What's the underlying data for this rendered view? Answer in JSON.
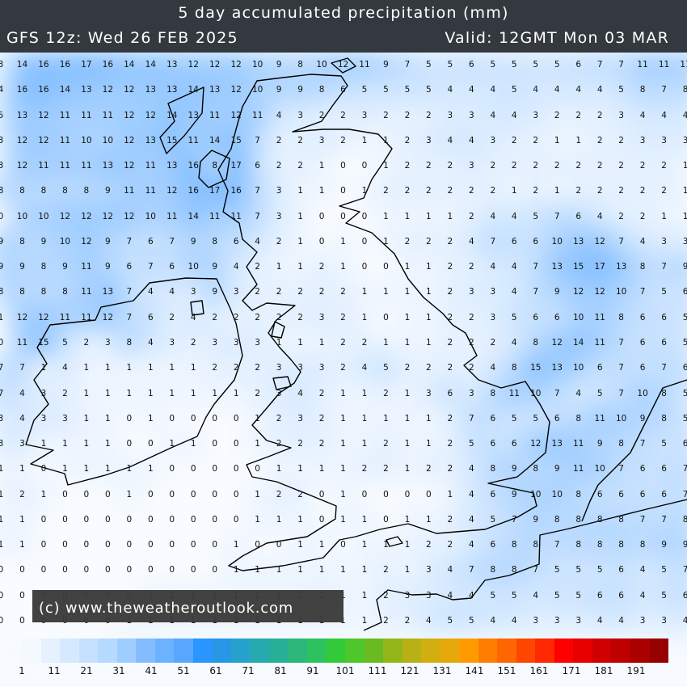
{
  "header": {
    "title": "5 day accumulated precipitation (mm)",
    "run": "GFS 12z: Wed 26 FEB 2025",
    "valid": "Valid: 12GMT Mon 03 MAR"
  },
  "watermark": "(c) www.theweatheroutlook.com",
  "units": "mm",
  "grid_values": [
    [
      3,
      14,
      16,
      16,
      17,
      16,
      14,
      14,
      13,
      12,
      12,
      12,
      10,
      9,
      8,
      10,
      12,
      11,
      9,
      7,
      5,
      5,
      6,
      5,
      5,
      5,
      5,
      6,
      7,
      7,
      11,
      11,
      11
    ],
    [
      4,
      16,
      16,
      14,
      13,
      12,
      12,
      13,
      13,
      14,
      13,
      12,
      10,
      9,
      9,
      8,
      6,
      5,
      5,
      5,
      5,
      4,
      4,
      4,
      5,
      4,
      4,
      4,
      4,
      5,
      8,
      7,
      8
    ],
    [
      5,
      13,
      12,
      11,
      11,
      11,
      12,
      12,
      14,
      13,
      11,
      12,
      11,
      4,
      3,
      2,
      2,
      3,
      2,
      2,
      2,
      3,
      3,
      4,
      4,
      3,
      2,
      2,
      2,
      3,
      4,
      4,
      4
    ],
    [
      3,
      12,
      12,
      11,
      10,
      10,
      12,
      13,
      15,
      11,
      14,
      15,
      7,
      2,
      2,
      3,
      2,
      1,
      1,
      2,
      3,
      4,
      4,
      3,
      2,
      2,
      1,
      1,
      2,
      2,
      3,
      3,
      3
    ],
    [
      3,
      12,
      11,
      11,
      11,
      13,
      12,
      11,
      13,
      16,
      8,
      17,
      6,
      2,
      2,
      1,
      0,
      0,
      1,
      2,
      2,
      2,
      3,
      2,
      2,
      2,
      2,
      2,
      2,
      2,
      2,
      2,
      1
    ],
    [
      8,
      8,
      8,
      8,
      8,
      9,
      11,
      11,
      12,
      16,
      17,
      16,
      7,
      3,
      1,
      1,
      0,
      1,
      2,
      2,
      2,
      2,
      2,
      2,
      1,
      2,
      1,
      2,
      2,
      2,
      2,
      2,
      1
    ],
    [
      0,
      10,
      10,
      12,
      12,
      12,
      12,
      10,
      11,
      14,
      11,
      11,
      7,
      3,
      1,
      0,
      0,
      0,
      1,
      1,
      1,
      1,
      2,
      4,
      4,
      5,
      7,
      6,
      4,
      2,
      2,
      1,
      1
    ],
    [
      9,
      8,
      9,
      10,
      12,
      9,
      7,
      6,
      7,
      9,
      8,
      6,
      4,
      2,
      1,
      0,
      1,
      0,
      1,
      2,
      2,
      2,
      4,
      7,
      6,
      6,
      10,
      13,
      12,
      7,
      4,
      3,
      3
    ],
    [
      9,
      9,
      8,
      9,
      11,
      9,
      6,
      7,
      6,
      10,
      9,
      4,
      2,
      1,
      1,
      2,
      1,
      0,
      0,
      1,
      1,
      2,
      2,
      4,
      4,
      7,
      13,
      15,
      17,
      13,
      8,
      7,
      9
    ],
    [
      8,
      8,
      8,
      8,
      11,
      13,
      7,
      4,
      4,
      3,
      9,
      3,
      2,
      2,
      2,
      2,
      2,
      1,
      1,
      1,
      1,
      2,
      3,
      3,
      4,
      7,
      9,
      12,
      12,
      10,
      7,
      5,
      6
    ],
    [
      1,
      12,
      12,
      11,
      11,
      12,
      7,
      6,
      2,
      4,
      2,
      2,
      2,
      2,
      2,
      3,
      2,
      1,
      0,
      1,
      1,
      2,
      2,
      3,
      5,
      6,
      6,
      10,
      11,
      8,
      6,
      6,
      5
    ],
    [
      0,
      11,
      15,
      5,
      2,
      3,
      8,
      4,
      3,
      2,
      3,
      3,
      3,
      1,
      1,
      1,
      2,
      2,
      1,
      1,
      1,
      2,
      2,
      2,
      4,
      8,
      12,
      14,
      11,
      7,
      6,
      6,
      5
    ],
    [
      7,
      7,
      1,
      4,
      1,
      1,
      1,
      1,
      1,
      1,
      2,
      2,
      2,
      3,
      3,
      3,
      2,
      4,
      5,
      2,
      2,
      2,
      2,
      4,
      8,
      15,
      13,
      10,
      6,
      7,
      6,
      7,
      6
    ],
    [
      7,
      4,
      3,
      2,
      1,
      1,
      1,
      1,
      1,
      1,
      1,
      1,
      2,
      3,
      4,
      2,
      1,
      1,
      2,
      1,
      3,
      6,
      3,
      8,
      11,
      10,
      7,
      4,
      5,
      7,
      10,
      8,
      5
    ],
    [
      3,
      4,
      3,
      3,
      1,
      1,
      0,
      1,
      0,
      0,
      0,
      0,
      1,
      2,
      3,
      2,
      1,
      1,
      1,
      1,
      1,
      2,
      7,
      6,
      5,
      5,
      6,
      8,
      11,
      10,
      9,
      8,
      5
    ],
    [
      3,
      3,
      1,
      1,
      1,
      1,
      0,
      0,
      1,
      1,
      0,
      0,
      1,
      2,
      2,
      2,
      1,
      1,
      2,
      1,
      1,
      2,
      5,
      6,
      6,
      12,
      13,
      11,
      9,
      8,
      7,
      5,
      6
    ],
    [
      1,
      1,
      0,
      1,
      1,
      1,
      1,
      1,
      0,
      0,
      0,
      0,
      0,
      1,
      1,
      1,
      1,
      2,
      2,
      1,
      2,
      2,
      4,
      8,
      9,
      8,
      9,
      11,
      10,
      7,
      6,
      6,
      7
    ],
    [
      1,
      2,
      1,
      0,
      0,
      0,
      1,
      0,
      0,
      0,
      0,
      0,
      1,
      2,
      2,
      0,
      1,
      0,
      0,
      0,
      0,
      1,
      4,
      6,
      9,
      10,
      10,
      8,
      6,
      6,
      6,
      6,
      7
    ],
    [
      1,
      1,
      0,
      0,
      0,
      0,
      0,
      0,
      0,
      0,
      0,
      0,
      1,
      1,
      1,
      0,
      1,
      1,
      0,
      1,
      1,
      2,
      4,
      5,
      7,
      9,
      8,
      8,
      8,
      8,
      7,
      7,
      8
    ],
    [
      1,
      1,
      0,
      0,
      0,
      0,
      0,
      0,
      0,
      0,
      0,
      1,
      0,
      0,
      1,
      1,
      0,
      1,
      1,
      1,
      2,
      2,
      4,
      6,
      8,
      8,
      7,
      8,
      8,
      8,
      8,
      9,
      9
    ],
    [
      0,
      0,
      0,
      0,
      0,
      0,
      0,
      0,
      0,
      0,
      0,
      1,
      1,
      1,
      1,
      1,
      1,
      1,
      2,
      1,
      3,
      4,
      7,
      8,
      8,
      7,
      5,
      5,
      5,
      6,
      4,
      5,
      7
    ],
    [
      0,
      0,
      0,
      0,
      0,
      0,
      0,
      1,
      1,
      1,
      1,
      1,
      1,
      1,
      1,
      2,
      1,
      1,
      2,
      3,
      3,
      4,
      4,
      5,
      5,
      4,
      5,
      5,
      6,
      6,
      4,
      5,
      6
    ],
    [
      0,
      0,
      0,
      0,
      0,
      0,
      1,
      1,
      1,
      1,
      1,
      1,
      1,
      1,
      1,
      1,
      1,
      1,
      2,
      2,
      4,
      5,
      5,
      4,
      4,
      3,
      3,
      3,
      4,
      4,
      3,
      3,
      4
    ]
  ],
  "colorbar": {
    "labels": [
      "1",
      "11",
      "21",
      "31",
      "41",
      "51",
      "61",
      "71",
      "81",
      "91",
      "101",
      "111",
      "121",
      "131",
      "141",
      "151",
      "161",
      "171",
      "181",
      "191"
    ],
    "colors": [
      "#f4f9ff",
      "#e6f1ff",
      "#d6e9ff",
      "#c6e1ff",
      "#b6d9ff",
      "#9fcdff",
      "#84bdff",
      "#6bb3ff",
      "#58a8ff",
      "#2a96ff",
      "#2897e6",
      "#27a2cc",
      "#26aab0",
      "#28b096",
      "#2bb87a",
      "#2ec25e",
      "#33ca3a",
      "#4ec72a",
      "#6aba22",
      "#95b61a",
      "#b7b116",
      "#d2ae10",
      "#e6a80a",
      "#ff9b00",
      "#ff7d00",
      "#ff6500",
      "#ff4600",
      "#ff2800",
      "#ff0000",
      "#e60000",
      "#d00000",
      "#be0000",
      "#ab0000",
      "#960000"
    ]
  },
  "shading": {
    "low": "#f8fbff",
    "high": "#6fb4ff"
  }
}
